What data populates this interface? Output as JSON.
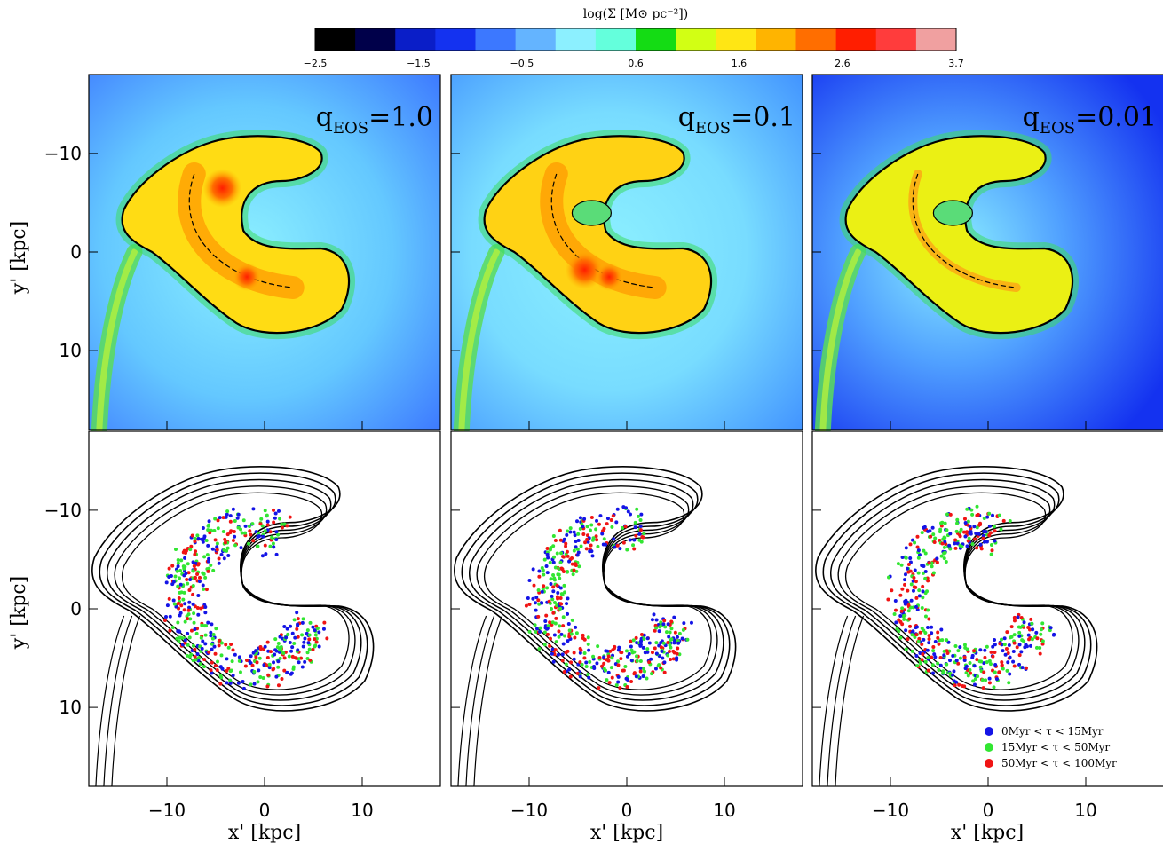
{
  "colorbar": {
    "title": "log(Σ [M⊙ pc⁻²])",
    "tick_labels": [
      "−2.5",
      "−1.5",
      "−0.5",
      "0.6",
      "1.6",
      "2.6",
      "3.7"
    ],
    "colors": [
      "#000000",
      "#00004a",
      "#0a1ec8",
      "#1432f0",
      "#3c78ff",
      "#64b4ff",
      "#8cf0ff",
      "#64ffdc",
      "#14dc14",
      "#d2ff14",
      "#ffe614",
      "#ffb400",
      "#ff6e00",
      "#ff1e00",
      "#ff3c3c",
      "#f0a0a0"
    ]
  },
  "axes": {
    "y_title": "y' [kpc]",
    "x_title": "x' [kpc]",
    "y_ticks": [
      "10",
      "0",
      "−10"
    ],
    "x_ticks": [
      "−10",
      "0",
      "10"
    ]
  },
  "panels": [
    {
      "label_main": "q",
      "label_sub": "EOS",
      "label_value": "=1.0"
    },
    {
      "label_main": "q",
      "label_sub": "EOS",
      "label_value": "=0.1"
    },
    {
      "label_main": "q",
      "label_sub": "EOS",
      "label_value": "=0.01"
    }
  ],
  "legend": [
    {
      "label": "0Myr < τ < 15Myr",
      "color": "#1414e6"
    },
    {
      "label": "15Myr < τ < 50Myr",
      "color": "#32e632"
    },
    {
      "label": "50Myr < τ < 100Myr",
      "color": "#f01414"
    }
  ],
  "chart_data": {
    "type": "heatmap",
    "colorbar_range": [
      -2.5,
      3.7
    ],
    "xlim": [
      -18,
      18
    ],
    "ylim": [
      -18,
      18
    ],
    "x_ticks": [
      -10,
      0,
      10
    ],
    "y_ticks": [
      -10,
      0,
      10
    ],
    "panels": [
      "q_EOS=1.0",
      "q_EOS=0.1",
      "q_EOS=0.01"
    ],
    "rows": [
      "gas surface density map",
      "star particle positions over density contours"
    ],
    "star_age_bins": [
      "0Myr < τ < 15Myr",
      "15Myr < τ < 50Myr",
      "50Myr < τ < 100Myr"
    ]
  }
}
